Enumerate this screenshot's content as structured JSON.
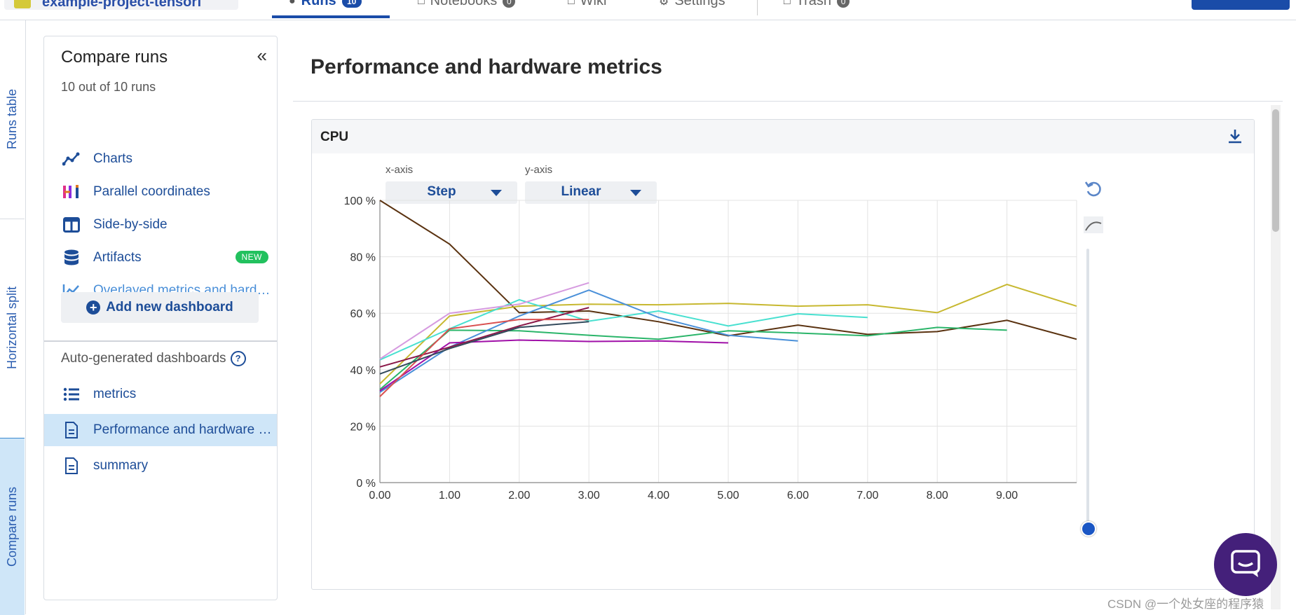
{
  "topbar": {
    "project_name": "example-project-tensorf",
    "tabs": [
      {
        "label": "Runs",
        "badge": "10",
        "active": true
      },
      {
        "label": "Notebooks",
        "badge": "0",
        "active": false
      },
      {
        "label": "Wiki",
        "badge": "",
        "active": false
      },
      {
        "label": "Settings",
        "badge": "",
        "active": false
      },
      {
        "label": "Trash",
        "badge": "0",
        "active": false
      }
    ]
  },
  "vertical_tabs": [
    "Runs table",
    "Horizontal split",
    "Compare runs"
  ],
  "sidebar": {
    "title": "Compare runs",
    "run_count": "10 out of 10 runs",
    "items": [
      {
        "label": "Charts",
        "icon": "line-chart-icon"
      },
      {
        "label": "Parallel coordinates",
        "icon": "parallel-coordinates-icon"
      },
      {
        "label": "Side-by-side",
        "icon": "columns-icon"
      },
      {
        "label": "Artifacts",
        "icon": "database-icon",
        "badge": "NEW"
      },
      {
        "label": "Overlayed metrics and hardware",
        "icon": "area-chart-icon"
      }
    ],
    "add_button": "Add new dashboard",
    "autogen_title": "Auto-generated dashboards",
    "autogen_items": [
      {
        "label": "metrics",
        "icon": "list-icon"
      },
      {
        "label": "Performance and hardware metrics",
        "icon": "document-icon",
        "selected": true
      },
      {
        "label": "summary",
        "icon": "document-icon"
      }
    ]
  },
  "main": {
    "title": "Performance and hardware metrics",
    "card_title": "CPU",
    "xaxis_label": "x-axis",
    "xaxis_value": "Step",
    "yaxis_label": "y-axis",
    "yaxis_value": "Linear"
  },
  "colors": {
    "accent": "#1a4ca8",
    "selected_bg": "#cfe6f8",
    "new_badge": "#22c15e",
    "chat": "#44207a"
  },
  "chart_data": {
    "type": "line",
    "title": "CPU",
    "xlim": [
      0,
      10
    ],
    "ylim": [
      0,
      100
    ],
    "xticks": [
      "0.00",
      "1.00",
      "2.00",
      "3.00",
      "4.00",
      "5.00",
      "6.00",
      "7.00",
      "8.00",
      "9.00"
    ],
    "yticks": [
      "0 %",
      "20 %",
      "40 %",
      "60 %",
      "80 %",
      "100 %"
    ],
    "grid": true,
    "series": [
      {
        "color": "#5a3210",
        "x": [
          0,
          1,
          2,
          3,
          4,
          5,
          6,
          7,
          8,
          9,
          10
        ],
        "y": [
          100,
          84.5,
          60.2,
          60.8,
          57,
          52,
          55.8,
          52.5,
          53.5,
          57.5,
          50.8
        ]
      },
      {
        "color": "#c7b830",
        "x": [
          0,
          1,
          2,
          3,
          4,
          5,
          6,
          7,
          8,
          9,
          10
        ],
        "y": [
          35,
          59,
          62.5,
          63.2,
          63,
          63.5,
          62.5,
          63,
          60.2,
          70.2,
          62.5
        ]
      },
      {
        "color": "#2bb56a",
        "x": [
          0,
          1,
          2,
          3,
          4,
          5,
          6,
          7,
          8,
          9
        ],
        "y": [
          33,
          54,
          53.8,
          52.2,
          50.8,
          53.8,
          53,
          52,
          55,
          54
        ]
      },
      {
        "color": "#48e0d0",
        "x": [
          0,
          1,
          2,
          3,
          4,
          5,
          6,
          7
        ],
        "y": [
          43.5,
          54.5,
          64.8,
          57.2,
          60.8,
          55.5,
          59.8,
          58.5
        ]
      },
      {
        "color": "#4a90d9",
        "x": [
          0,
          1,
          2,
          3,
          4,
          5,
          6
        ],
        "y": [
          32,
          48,
          59,
          68.2,
          58.5,
          52.2,
          50.2
        ]
      },
      {
        "color": "#a010a8",
        "x": [
          0,
          1,
          2,
          3,
          4,
          5
        ],
        "y": [
          32.5,
          49.5,
          50.5,
          50,
          50.2,
          49.5
        ]
      },
      {
        "color": "#d69be0",
        "x": [
          0,
          1,
          2,
          3
        ],
        "y": [
          43.8,
          60,
          63.2,
          70.8
        ]
      },
      {
        "color": "#8a1848",
        "x": [
          0,
          1,
          2,
          3
        ],
        "y": [
          41,
          48,
          55.5,
          62
        ]
      },
      {
        "color": "#d95050",
        "x": [
          0,
          1,
          2,
          3
        ],
        "y": [
          30.5,
          54.5,
          57.8,
          57.8
        ]
      },
      {
        "color": "#334a5c",
        "x": [
          0,
          1,
          2,
          3
        ],
        "y": [
          38.5,
          47.5,
          55,
          57
        ]
      }
    ]
  },
  "watermark": "CSDN @一个处女座的程序猿"
}
